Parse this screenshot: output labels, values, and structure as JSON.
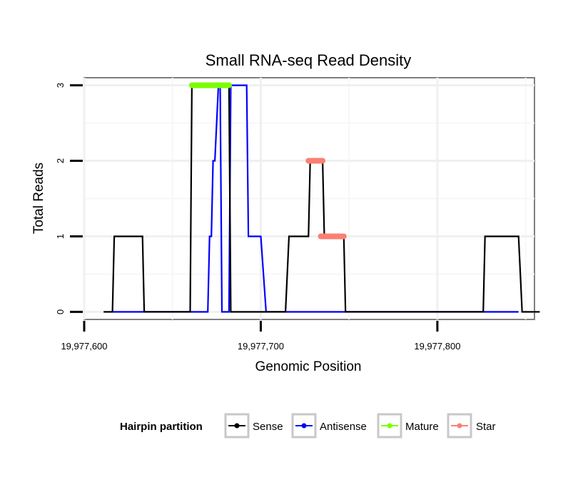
{
  "chart_data": {
    "type": "line",
    "title": "Small RNA-seq Read Density",
    "xlabel": "Genomic Position",
    "ylabel": "Total Reads",
    "xlim": [
      19977600,
      19977855
    ],
    "ylim": [
      -0.1,
      3.1
    ],
    "x_ticks": [
      19977600,
      19977700,
      19977800
    ],
    "x_tick_labels": [
      "19,977,600",
      "19,977,700",
      "19,977,800"
    ],
    "y_ticks": [
      0,
      1,
      2,
      3
    ],
    "y_tick_labels": [
      "0",
      "1",
      "2",
      "3"
    ],
    "grid": true,
    "legend": {
      "title": "Hairpin partition",
      "position": "bottom",
      "entries": [
        {
          "name": "Sense",
          "color": "#000000"
        },
        {
          "name": "Antisense",
          "color": "#0000ff"
        },
        {
          "name": "Mature",
          "color": "#7cfc00"
        },
        {
          "name": "Star",
          "color": "#fa8072"
        }
      ]
    },
    "series": [
      {
        "name": "Sense",
        "color": "#000000",
        "points": [
          [
            19977611,
            0
          ],
          [
            19977616,
            0
          ],
          [
            19977617,
            1
          ],
          [
            19977633,
            1
          ],
          [
            19977634,
            0
          ],
          [
            19977660,
            0
          ],
          [
            19977661,
            3
          ],
          [
            19977682,
            3
          ],
          [
            19977683,
            0
          ],
          [
            19977714,
            0
          ],
          [
            19977716,
            1
          ],
          [
            19977727,
            1
          ],
          [
            19977728,
            2
          ],
          [
            19977735,
            2
          ],
          [
            19977736,
            1
          ],
          [
            19977747,
            1
          ],
          [
            19977748,
            0
          ],
          [
            19977826,
            0
          ],
          [
            19977827,
            1
          ],
          [
            19977846,
            1
          ],
          [
            19977848,
            0
          ],
          [
            19977858,
            0
          ]
        ]
      },
      {
        "name": "Antisense",
        "color": "#0000ff",
        "points": [
          [
            19977616,
            0
          ],
          [
            19977633,
            0
          ],
          [
            19977634,
            0
          ],
          [
            19977670,
            0
          ],
          [
            19977671,
            1
          ],
          [
            19977672,
            1
          ],
          [
            19977673,
            2
          ],
          [
            19977674,
            2
          ],
          [
            19977676,
            3
          ],
          [
            19977677,
            3
          ],
          [
            19977678,
            0
          ],
          [
            19977682,
            0
          ],
          [
            19977683,
            3
          ],
          [
            19977692,
            3
          ],
          [
            19977693,
            1
          ],
          [
            19977700,
            1
          ],
          [
            19977703,
            0
          ],
          [
            19977748,
            0
          ],
          [
            19977827,
            0
          ],
          [
            19977846,
            0
          ]
        ]
      },
      {
        "name": "Mature",
        "color": "#7cfc00",
        "points": [
          [
            19977661,
            3
          ],
          [
            19977682,
            3
          ]
        ]
      },
      {
        "name": "Star",
        "color": "#fa8072",
        "segments": [
          [
            [
              19977727,
              2
            ],
            [
              19977735,
              2
            ]
          ],
          [
            [
              19977734,
              1
            ],
            [
              19977747,
              1
            ]
          ]
        ]
      }
    ]
  }
}
